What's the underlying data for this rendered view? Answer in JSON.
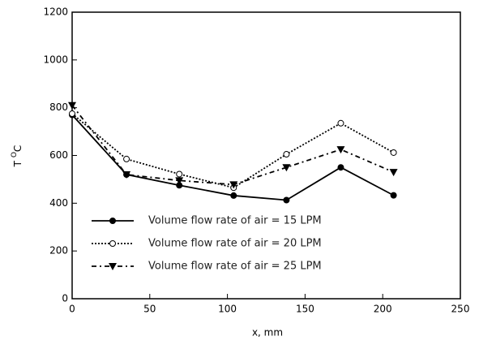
{
  "chart_data": {
    "type": "line",
    "xlabel": "x, mm",
    "ylabel": "T",
    "ylabel_sup": "O",
    "ylabel_unit": "C",
    "xlim": [
      0,
      250
    ],
    "xticks": [
      0,
      50,
      100,
      150,
      200,
      250
    ],
    "ylim": [
      0,
      1200
    ],
    "yticks": [
      0,
      200,
      400,
      600,
      800,
      1000,
      1200
    ],
    "legend": "lower-left",
    "series": [
      {
        "name": "Volume flow rate of air = 15 LPM",
        "color": "#000000",
        "marker": "filled-circle",
        "dash": "solid",
        "x": [
          0,
          35,
          69,
          104,
          138,
          173,
          207
        ],
        "values": [
          770,
          520,
          475,
          432,
          413,
          550,
          433
        ]
      },
      {
        "name": "Volume flow rate of air = 20 LPM",
        "color": "#000000",
        "marker": "open-circle",
        "dash": "dotted",
        "x": [
          0,
          35,
          69,
          104,
          138,
          173,
          207
        ],
        "values": [
          775,
          585,
          522,
          465,
          605,
          735,
          612
        ]
      },
      {
        "name": "Volume flow rate of air = 25 LPM",
        "color": "#000000",
        "marker": "filled-triangle-down",
        "dash": "dash-dot",
        "x": [
          0,
          35,
          69,
          104,
          138,
          173,
          207
        ],
        "values": [
          810,
          520,
          495,
          478,
          550,
          625,
          530
        ]
      }
    ]
  }
}
